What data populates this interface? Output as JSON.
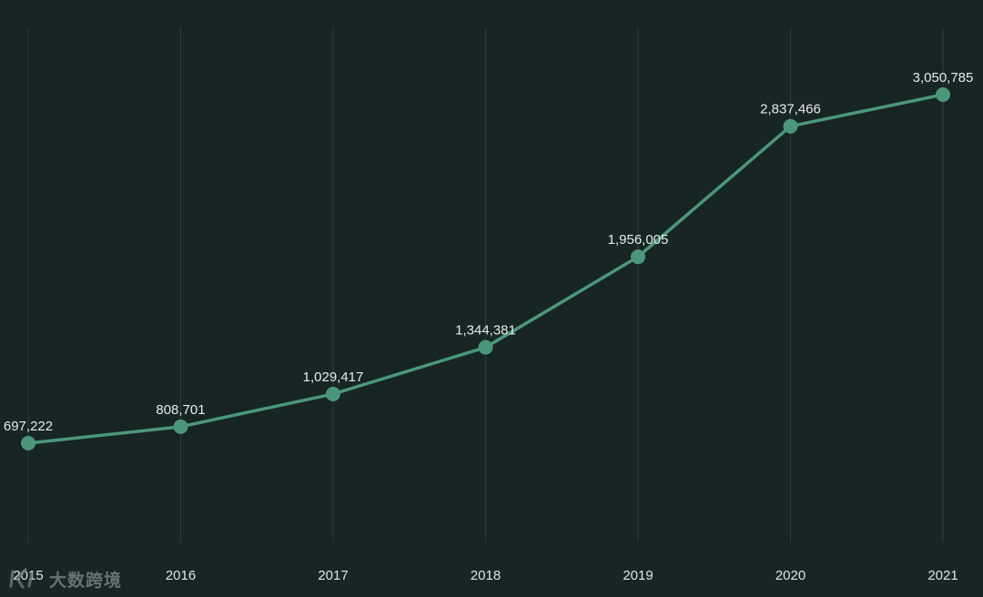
{
  "chart_data": {
    "type": "line",
    "title": "",
    "xlabel": "",
    "ylabel": "",
    "categories": [
      "2015",
      "2016",
      "2017",
      "2018",
      "2019",
      "2020",
      "2021"
    ],
    "series": [
      {
        "values": [
          697222,
          808701,
          1029417,
          1344381,
          1956005,
          2837466,
          3050785
        ],
        "labels": [
          "697,222",
          "808,701",
          "1,029,417",
          "1,344,381",
          "1,956,005",
          "2,837,466",
          "3,050,785"
        ]
      }
    ],
    "ylim": [
      -1750000,
      3600000
    ],
    "grid": "vertical",
    "legend": "none",
    "colors": {
      "background": "#172524",
      "line": "#4b977b",
      "grid": "#24403a",
      "label": "#e6ecea",
      "tick": "#dfe6e4"
    }
  },
  "watermark": {
    "logo": "tilted-k-logo-icon",
    "text": "大数跨境"
  }
}
